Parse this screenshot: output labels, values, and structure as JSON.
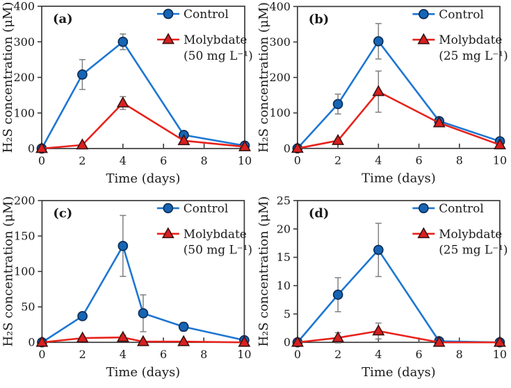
{
  "figure": {
    "title": "H2S concentration time-course, four panels",
    "background": "#ffffff",
    "xlabel": "Time (days)",
    "ylabel": "H₂S concentration (μM)"
  },
  "style": {
    "axis_color": "#3a3a3a",
    "text_color": "#1a1a1a",
    "error_bar_color": "#808080",
    "control_line": "#1d76d2",
    "control_fill": "#1665b5",
    "control_edge": "#0d2c55",
    "molybdate_line": "#e8221c",
    "molybdate_fill": "#da1f1f",
    "molybdate_edge": "#3a1212"
  },
  "chart_data": [
    {
      "type": "line",
      "panel_label": "(a)",
      "xlabel": "Time (days)",
      "ylabel": "H₂S concentration (μM)",
      "xlim": [
        0,
        10
      ],
      "ylim": [
        0,
        400
      ],
      "xticks": [
        0,
        2,
        4,
        6,
        8,
        10
      ],
      "yticks": [
        0,
        100,
        200,
        300,
        400
      ],
      "grid": false,
      "legend_position": "top-right-inside",
      "x": [
        0,
        2,
        4,
        7,
        10
      ],
      "series": [
        {
          "name": "Control",
          "legend": [
            "Control"
          ],
          "marker": "circle",
          "line_color": "#1d76d2",
          "fill": "#1665b5",
          "edge": "#0d2c55",
          "values": [
            0,
            208,
            300,
            38,
            8
          ],
          "errors": [
            0,
            42,
            22,
            6,
            3
          ]
        },
        {
          "name": "Molybdate (50 mg L-1)",
          "legend": [
            "Molybdate",
            "(50 mg L⁻¹)"
          ],
          "marker": "triangle",
          "line_color": "#e8221c",
          "fill": "#da1f1f",
          "edge": "#3a1212",
          "values": [
            0,
            10,
            128,
            22,
            5
          ],
          "errors": [
            0,
            4,
            18,
            4,
            2
          ]
        }
      ]
    },
    {
      "type": "line",
      "panel_label": "(b)",
      "xlabel": "Time (days)",
      "ylabel": "H₂S concentration (μM)",
      "xlim": [
        0,
        10
      ],
      "ylim": [
        0,
        400
      ],
      "xticks": [
        0,
        2,
        4,
        6,
        8,
        10
      ],
      "yticks": [
        0,
        100,
        200,
        300,
        400
      ],
      "grid": false,
      "legend_position": "top-right-inside",
      "x": [
        0,
        2,
        4,
        7,
        10
      ],
      "series": [
        {
          "name": "Control",
          "legend": [
            "Control"
          ],
          "marker": "circle",
          "line_color": "#1d76d2",
          "fill": "#1665b5",
          "edge": "#0d2c55",
          "values": [
            0,
            125,
            302,
            77,
            20
          ],
          "errors": [
            0,
            28,
            50,
            6,
            4
          ]
        },
        {
          "name": "Molybdate (25 mg L-1)",
          "legend": [
            "Molybdate",
            "(25 mg L⁻¹)"
          ],
          "marker": "triangle",
          "line_color": "#e8221c",
          "fill": "#da1f1f",
          "edge": "#3a1212",
          "values": [
            0,
            22,
            160,
            72,
            10
          ],
          "errors": [
            0,
            5,
            58,
            5,
            3
          ]
        }
      ]
    },
    {
      "type": "line",
      "panel_label": "(c)",
      "xlabel": "Time (days)",
      "ylabel": "H₂S concentration (μM)",
      "xlim": [
        0,
        10
      ],
      "ylim": [
        0,
        200
      ],
      "xticks": [
        0,
        2,
        4,
        6,
        8,
        10
      ],
      "yticks": [
        0,
        50,
        100,
        150,
        200
      ],
      "grid": false,
      "legend_position": "top-right-inside",
      "x": [
        0,
        2,
        4,
        5,
        7,
        10
      ],
      "series": [
        {
          "name": "Control",
          "legend": [
            "Control"
          ],
          "marker": "circle",
          "line_color": "#1d76d2",
          "fill": "#1665b5",
          "edge": "#0d2c55",
          "values": [
            0,
            37,
            136,
            41,
            22,
            3
          ],
          "errors": [
            0,
            4,
            43,
            26,
            6,
            1
          ]
        },
        {
          "name": "Molybdate (50 mg L-1)",
          "legend": [
            "Molybdate",
            "(50 mg L⁻¹)"
          ],
          "marker": "triangle",
          "line_color": "#e8221c",
          "fill": "#da1f1f",
          "edge": "#3a1212",
          "values": [
            0,
            6,
            7,
            1,
            1,
            0
          ],
          "errors": [
            0,
            2,
            3,
            1,
            1,
            0
          ]
        }
      ]
    },
    {
      "type": "line",
      "panel_label": "(d)",
      "xlabel": "Time (days)",
      "ylabel": "H₂S concentration (μM)",
      "xlim": [
        0,
        10
      ],
      "ylim": [
        0,
        25
      ],
      "xticks": [
        0,
        2,
        4,
        6,
        8,
        10
      ],
      "yticks": [
        0,
        5,
        10,
        15,
        20,
        25
      ],
      "grid": false,
      "legend_position": "top-right-inside",
      "x": [
        0,
        2,
        4,
        7,
        10
      ],
      "series": [
        {
          "name": "Control",
          "legend": [
            "Control"
          ],
          "marker": "circle",
          "line_color": "#1d76d2",
          "fill": "#1665b5",
          "edge": "#0d2c55",
          "values": [
            0,
            8.4,
            16.3,
            0.2,
            0
          ],
          "errors": [
            0,
            3.0,
            4.7,
            0.3,
            0
          ]
        },
        {
          "name": "Molybdate (25 mg L-1)",
          "legend": [
            "Molybdate",
            "(25 mg L⁻¹)"
          ],
          "marker": "triangle",
          "line_color": "#e8221c",
          "fill": "#da1f1f",
          "edge": "#3a1212",
          "values": [
            0,
            0.8,
            2.0,
            0,
            0
          ],
          "errors": [
            0,
            0.9,
            1.4,
            0.2,
            0
          ]
        }
      ]
    }
  ]
}
